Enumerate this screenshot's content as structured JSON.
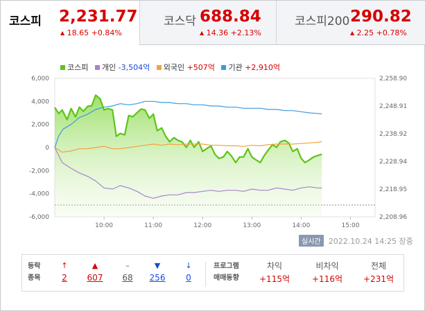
{
  "tabs": [
    {
      "name": "코스피",
      "value": "2,231.77",
      "change": "18.65",
      "pct": "+0.84%",
      "active": true
    },
    {
      "name": "코스닥",
      "value": "688.84",
      "change": "14.36",
      "pct": "+2.13%"
    },
    {
      "name": "코스피200",
      "value": "290.82",
      "change": "2.25",
      "pct": "+0.78%"
    }
  ],
  "legend": [
    {
      "name": "코스피",
      "value": "",
      "color": "#5dc418"
    },
    {
      "name": "개인",
      "value": "-3,504억",
      "color": "#a883cc"
    },
    {
      "name": "외국인",
      "value": "+507억",
      "color": "#f4a13c"
    },
    {
      "name": "기관",
      "value": "+2,910억",
      "color": "#3b9ae0"
    }
  ],
  "chart_data": {
    "type": "line",
    "left_axis": {
      "ticks": [
        "6,000",
        "4,000",
        "2,000",
        "0",
        "-2,000",
        "-4,000",
        "-6,000"
      ],
      "range": [
        -6000,
        6000
      ]
    },
    "right_axis": {
      "ticks": [
        "2,258.90",
        "2,248.91",
        "2,238.92",
        "2,228.94",
        "2,218.95",
        "2,208.96"
      ],
      "range": [
        2208.96,
        2258.9
      ]
    },
    "x_ticks": [
      "10:00",
      "11:00",
      "12:00",
      "13:00",
      "14:00",
      "15:00"
    ],
    "x_range": [
      9.0,
      15.5
    ],
    "series": [
      {
        "name": "코스피",
        "axis": "right",
        "color": "#5dc418",
        "x": [
          9.0,
          9.08,
          9.15,
          9.25,
          9.33,
          9.42,
          9.5,
          9.58,
          9.67,
          9.75,
          9.83,
          9.92,
          10.0,
          10.08,
          10.17,
          10.25,
          10.33,
          10.42,
          10.5,
          10.58,
          10.67,
          10.75,
          10.83,
          10.92,
          11.0,
          11.08,
          11.17,
          11.25,
          11.33,
          11.42,
          11.5,
          11.58,
          11.67,
          11.75,
          11.83,
          11.92,
          12.0,
          12.08,
          12.17,
          12.25,
          12.33,
          12.42,
          12.5,
          12.58,
          12.67,
          12.75,
          12.83,
          12.92,
          13.0,
          13.08,
          13.17,
          13.25,
          13.33,
          13.42,
          13.5,
          13.58,
          13.67,
          13.75,
          13.83,
          13.92,
          14.0,
          14.08,
          14.17,
          14.25,
          14.33,
          14.42
        ],
        "values": [
          2248.4,
          2246.2,
          2247.5,
          2244.0,
          2248.0,
          2245.0,
          2248.5,
          2247.0,
          2248.8,
          2249.0,
          2252.8,
          2251.5,
          2247.5,
          2248.0,
          2247.5,
          2238.0,
          2239.0,
          2238.5,
          2245.5,
          2245.0,
          2246.5,
          2247.8,
          2247.5,
          2244.5,
          2246.0,
          2240.0,
          2241.0,
          2238.0,
          2236.0,
          2237.5,
          2236.5,
          2236.0,
          2234.0,
          2236.5,
          2234.0,
          2236.0,
          2232.5,
          2233.5,
          2234.5,
          2231.5,
          2230.0,
          2230.5,
          2232.5,
          2231.0,
          2228.5,
          2230.5,
          2230.5,
          2233.5,
          2230.5,
          2229.5,
          2228.5,
          2231.0,
          2233.0,
          2235.0,
          2234.0,
          2236.0,
          2236.5,
          2235.5,
          2232.5,
          2233.5,
          2230.0,
          2228.5,
          2229.5,
          2230.5,
          2231.0,
          2231.5
        ]
      },
      {
        "name": "개인",
        "axis": "left",
        "color": "#a883cc",
        "x": [
          9.0,
          9.15,
          9.33,
          9.5,
          9.67,
          9.83,
          10.0,
          10.17,
          10.33,
          10.5,
          10.67,
          10.83,
          11.0,
          11.17,
          11.33,
          11.5,
          11.67,
          11.83,
          12.0,
          12.17,
          12.33,
          12.5,
          12.67,
          12.83,
          13.0,
          13.17,
          13.33,
          13.5,
          13.67,
          13.83,
          14.0,
          14.17,
          14.33,
          14.42
        ],
        "values": [
          0,
          -1300,
          -1800,
          -2200,
          -2500,
          -2900,
          -3500,
          -3600,
          -3300,
          -3500,
          -3800,
          -4200,
          -4400,
          -4200,
          -4100,
          -4100,
          -3900,
          -3900,
          -3800,
          -3700,
          -3800,
          -3700,
          -3700,
          -3800,
          -3600,
          -3700,
          -3700,
          -3500,
          -3600,
          -3700,
          -3500,
          -3400,
          -3500,
          -3504
        ]
      },
      {
        "name": "외국인",
        "axis": "left",
        "color": "#f4a13c",
        "x": [
          9.0,
          9.15,
          9.33,
          9.5,
          9.67,
          9.83,
          10.0,
          10.17,
          10.33,
          10.5,
          10.67,
          10.83,
          11.0,
          11.17,
          11.33,
          11.5,
          11.67,
          11.83,
          12.0,
          12.17,
          12.33,
          12.5,
          12.67,
          12.83,
          13.0,
          13.17,
          13.33,
          13.5,
          13.67,
          13.83,
          14.0,
          14.17,
          14.33,
          14.42
        ],
        "values": [
          0,
          -400,
          -300,
          -100,
          -100,
          0,
          100,
          -100,
          -100,
          0,
          100,
          200,
          300,
          200,
          300,
          250,
          300,
          300,
          300,
          200,
          200,
          150,
          150,
          100,
          200,
          150,
          250,
          300,
          300,
          300,
          350,
          400,
          450,
          507
        ]
      },
      {
        "name": "기관",
        "axis": "left",
        "color": "#3b9ae0",
        "x": [
          9.0,
          9.08,
          9.17,
          9.33,
          9.5,
          9.67,
          9.83,
          10.0,
          10.17,
          10.33,
          10.5,
          10.67,
          10.83,
          11.0,
          11.17,
          11.33,
          11.5,
          11.67,
          11.83,
          12.0,
          12.17,
          12.33,
          12.5,
          12.67,
          12.83,
          13.0,
          13.17,
          13.33,
          13.5,
          13.67,
          13.83,
          14.0,
          14.17,
          14.33,
          14.42
        ],
        "values": [
          0,
          1000,
          1600,
          2000,
          2600,
          2900,
          3300,
          3500,
          3600,
          3800,
          3700,
          3800,
          4000,
          4000,
          3900,
          3900,
          3800,
          3800,
          3700,
          3700,
          3600,
          3600,
          3500,
          3500,
          3400,
          3400,
          3400,
          3300,
          3300,
          3200,
          3200,
          3100,
          3000,
          2950,
          2910
        ]
      }
    ]
  },
  "realtime": {
    "label": "실시간",
    "timestamp": "2022.10.24 14:25 장중"
  },
  "stats": {
    "updown_label": [
      "등락",
      "종목"
    ],
    "cols": [
      {
        "icon": "↑",
        "kind": "up",
        "value": "2"
      },
      {
        "icon": "▲",
        "kind": "up",
        "value": "607"
      },
      {
        "icon": "–",
        "kind": "neu",
        "value": "68"
      },
      {
        "icon": "▼",
        "kind": "down",
        "value": "256"
      },
      {
        "icon": "↓",
        "kind": "down",
        "value": "0"
      }
    ],
    "program_label": [
      "프로그램",
      "매매동향"
    ],
    "program": [
      {
        "head": "차익",
        "value": "+115억"
      },
      {
        "head": "비차익",
        "value": "+116억"
      },
      {
        "head": "전체",
        "value": "+231억"
      }
    ]
  }
}
